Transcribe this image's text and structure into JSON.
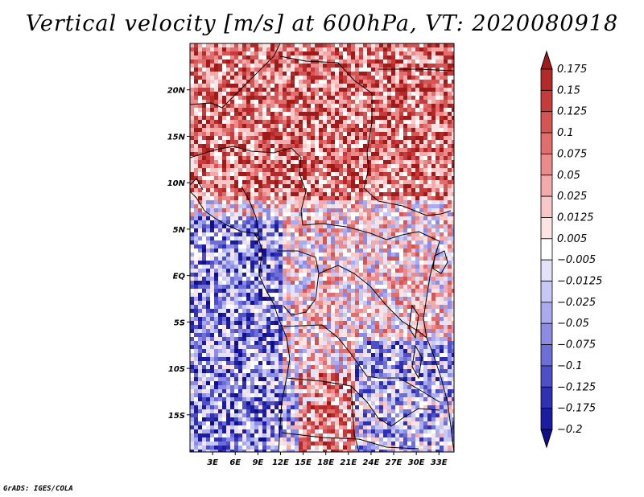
{
  "title": "Vertical velocity [m/s] at 600hPa, VT: 2020080918",
  "map": {
    "region": "Central Africa",
    "lon_range": [
      0,
      35
    ],
    "lat_range": [
      -19,
      25
    ],
    "lat_ticks": [
      {
        "value": 20,
        "label": "20N"
      },
      {
        "value": 15,
        "label": "15N"
      },
      {
        "value": 10,
        "label": "10N"
      },
      {
        "value": 5,
        "label": "5N"
      },
      {
        "value": 0,
        "label": "EQ"
      },
      {
        "value": -5,
        "label": "5S"
      },
      {
        "value": -10,
        "label": "10S"
      },
      {
        "value": -15,
        "label": "15S"
      }
    ],
    "lon_ticks": [
      {
        "value": 3,
        "label": "3E"
      },
      {
        "value": 6,
        "label": "6E"
      },
      {
        "value": 9,
        "label": "9E"
      },
      {
        "value": 12,
        "label": "12E"
      },
      {
        "value": 15,
        "label": "15E"
      },
      {
        "value": 18,
        "label": "18E"
      },
      {
        "value": 21,
        "label": "21E"
      },
      {
        "value": 24,
        "label": "24E"
      },
      {
        "value": 27,
        "label": "27E"
      },
      {
        "value": 30,
        "label": "30E"
      },
      {
        "value": 33,
        "label": "33E"
      }
    ]
  },
  "colorbar": {
    "levels": [
      "0.175",
      "0.15",
      "0.125",
      "0.1",
      "0.075",
      "0.05",
      "0.025",
      "0.0125",
      "0.005",
      "−0.005",
      "−0.0125",
      "−0.025",
      "−0.05",
      "−0.075",
      "−0.1",
      "−0.125",
      "−0.175",
      "−0.2"
    ],
    "colors": [
      "#a01a1a",
      "#b42a2a",
      "#c63c3c",
      "#d55454",
      "#e06e6e",
      "#ea8c8c",
      "#f2aaaa",
      "#f8c8c8",
      "#fde4e4",
      "#ffffff",
      "#e2e2fa",
      "#c8c8f4",
      "#aaaaee",
      "#8c8ce6",
      "#6e6ed8",
      "#5050c6",
      "#3030b2",
      "#1c1ca0",
      "#10108a"
    ]
  },
  "credit": "GrADS: IGES/COLA"
}
